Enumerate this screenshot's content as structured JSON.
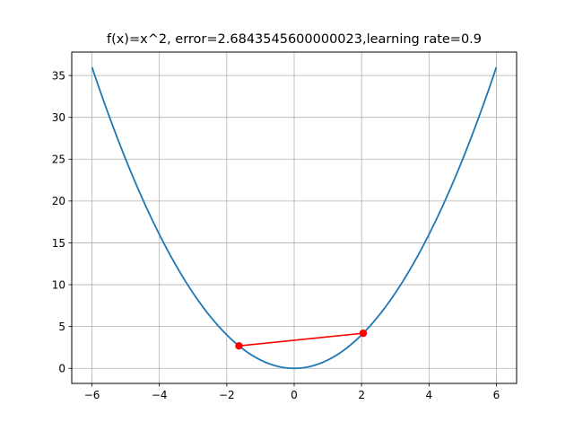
{
  "chart_data": {
    "type": "line",
    "title": "f(x)=x^2, error=2.6843545600000023,learning rate=0.9",
    "xlabel": "",
    "ylabel": "",
    "xlim": [
      -6.6,
      6.6
    ],
    "ylim": [
      -1.8,
      37.8
    ],
    "x_ticks": [
      -6,
      -4,
      -2,
      0,
      2,
      4,
      6
    ],
    "x_tick_labels": [
      "−6",
      "−4",
      "−2",
      "0",
      "2",
      "4",
      "6"
    ],
    "y_ticks": [
      0,
      5,
      10,
      15,
      20,
      25,
      30,
      35
    ],
    "y_tick_labels": [
      "0",
      "5",
      "10",
      "15",
      "20",
      "25",
      "30",
      "35"
    ],
    "grid": true,
    "series": [
      {
        "function": "x^2",
        "x_range": [
          -6,
          6
        ],
        "color": "#1f77b4"
      },
      {
        "x": [
          -1.6384,
          2.048
        ],
        "y": [
          2.6844,
          4.1943
        ],
        "color": "#ff0000",
        "marker": "circle"
      }
    ]
  }
}
